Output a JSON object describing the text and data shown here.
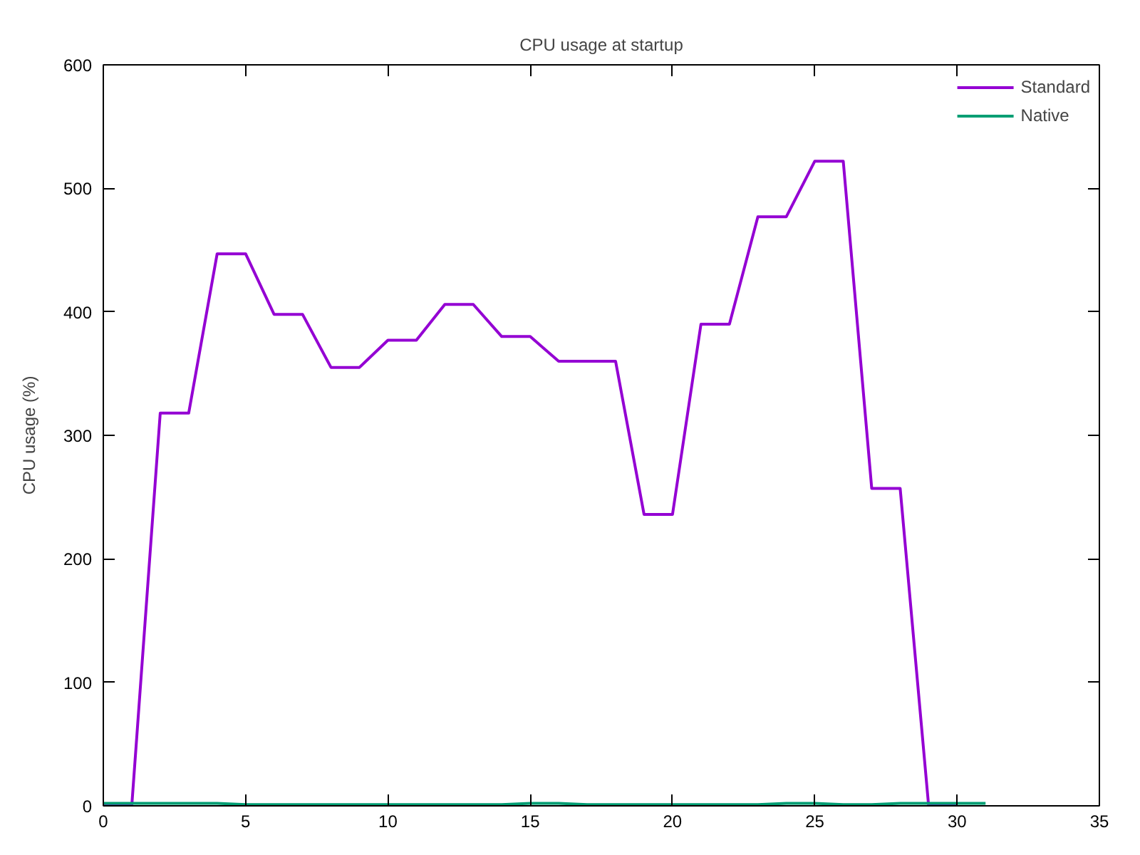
{
  "chart_data": {
    "type": "line",
    "title": "CPU usage at startup",
    "ylabel": "CPU usage (%)",
    "x": [
      0,
      1,
      2,
      3,
      4,
      5,
      6,
      7,
      8,
      9,
      10,
      11,
      12,
      13,
      14,
      15,
      16,
      17,
      18,
      19,
      20,
      21,
      22,
      23,
      24,
      25,
      26,
      27,
      28,
      29,
      30
    ],
    "series": [
      {
        "name": "Standard",
        "color": "#9400d3",
        "values": [
          0,
          0,
          318,
          318,
          447,
          447,
          398,
          398,
          355,
          355,
          377,
          377,
          406,
          406,
          380,
          380,
          360,
          360,
          360,
          236,
          236,
          390,
          390,
          477,
          477,
          522,
          522,
          257,
          257,
          0,
          0
        ]
      },
      {
        "name": "Native",
        "color": "#009e73",
        "x": [
          0,
          1,
          2,
          3,
          4,
          5,
          6,
          7,
          8,
          9,
          10,
          11,
          12,
          13,
          14,
          15,
          16,
          17,
          18,
          19,
          20,
          21,
          22,
          23,
          24,
          25,
          26,
          27,
          28,
          29,
          30,
          31
        ],
        "values": [
          2,
          2,
          2,
          2,
          2,
          1,
          1,
          1,
          1,
          1,
          1,
          1,
          1,
          1,
          1,
          2,
          2,
          1,
          1,
          1,
          1,
          1,
          1,
          1,
          2,
          2,
          1,
          1,
          2,
          2,
          2,
          2
        ]
      }
    ],
    "xlim": [
      0,
      35
    ],
    "ylim": [
      0,
      600
    ],
    "xticks": [
      0,
      5,
      10,
      15,
      20,
      25,
      30,
      35
    ],
    "yticks": [
      0,
      100,
      200,
      300,
      400,
      500,
      600
    ],
    "grid": false,
    "legend": "top right",
    "marker": "none",
    "line_style": "solid"
  }
}
